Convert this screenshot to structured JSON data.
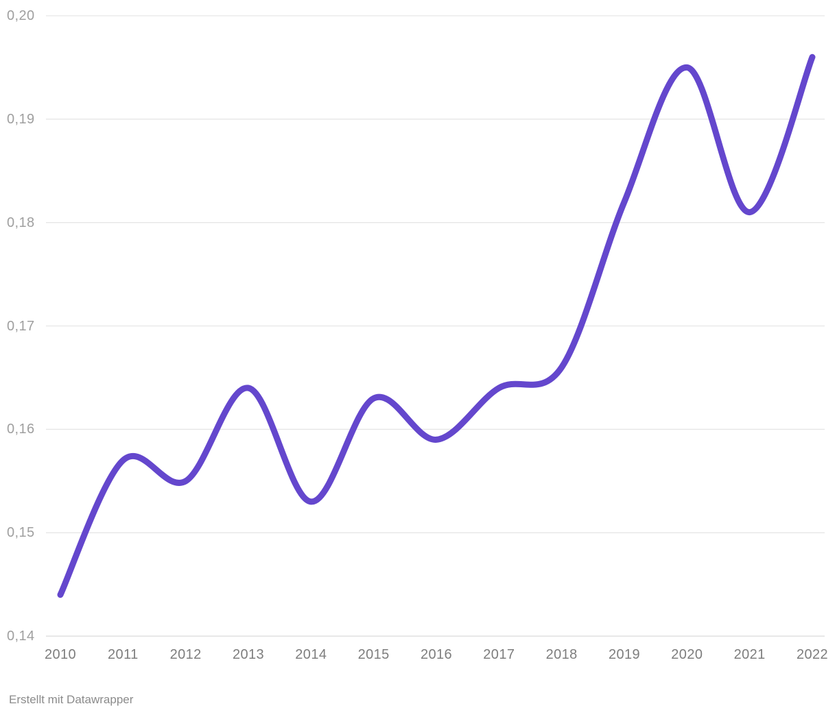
{
  "chart_data": {
    "type": "line",
    "x": [
      "2010",
      "2011",
      "2012",
      "2013",
      "2014",
      "2015",
      "2016",
      "2017",
      "2018",
      "2019",
      "2020",
      "2021",
      "2022"
    ],
    "values": [
      0.144,
      0.157,
      0.155,
      0.164,
      0.153,
      0.163,
      0.159,
      0.164,
      0.166,
      0.182,
      0.195,
      0.181,
      0.196
    ],
    "series_count": 1,
    "title": "",
    "xlabel": "",
    "ylabel": "",
    "ylim": [
      0.14,
      0.2
    ],
    "y_ticks": [
      0.14,
      0.15,
      0.16,
      0.17,
      0.18,
      0.19,
      0.2
    ],
    "y_tick_labels": [
      "0,14",
      "0,15",
      "0,16",
      "0,17",
      "0,18",
      "0,19",
      "0,20"
    ],
    "decimal_separator": ",",
    "grid": true,
    "legend": false,
    "smoothing": "curved",
    "line_color": "#6447cd",
    "grid_color": "#e6e6e6",
    "baseline_color": "#dadada",
    "y_label_color": "#9f9f9f",
    "x_label_color": "#7d7d7d"
  },
  "footer": {
    "text": "Erstellt mit Datawrapper",
    "color": "#8b8b8b"
  }
}
